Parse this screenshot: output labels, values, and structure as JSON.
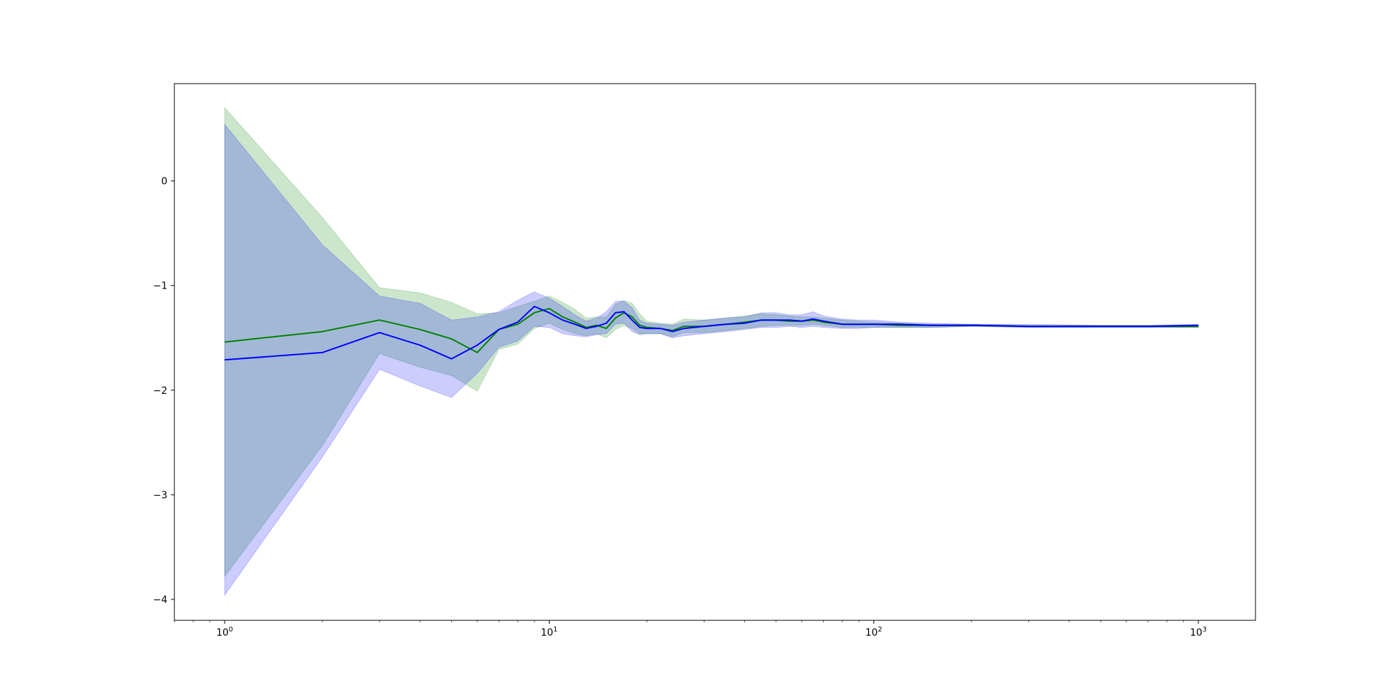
{
  "chart_data": {
    "type": "line",
    "title": "",
    "xlabel": "",
    "ylabel": "",
    "xscale": "log",
    "xlim": [
      0.7,
      1500
    ],
    "ylim": [
      -4.2,
      0.93
    ],
    "grid": false,
    "legend": "none",
    "x_ticks": [
      {
        "value": 1,
        "base": "10",
        "exp": "0"
      },
      {
        "value": 10,
        "base": "10",
        "exp": "1"
      },
      {
        "value": 100,
        "base": "10",
        "exp": "2"
      },
      {
        "value": 1000,
        "base": "10",
        "exp": "3"
      }
    ],
    "y_ticks": [
      {
        "value": 0,
        "label": "0"
      },
      {
        "value": -1,
        "label": "−1"
      },
      {
        "value": -2,
        "label": "−2"
      },
      {
        "value": -3,
        "label": "−3"
      },
      {
        "value": -4,
        "label": "−4"
      }
    ],
    "series": [
      {
        "color": "#008000",
        "band_color": "#008000",
        "band_opacity": 0.2,
        "x": [
          1,
          2,
          3,
          4,
          5,
          6,
          7,
          8,
          9,
          10,
          11,
          12,
          13,
          14,
          15,
          16,
          17,
          18,
          19,
          20,
          22,
          24,
          26,
          30,
          35,
          40,
          45,
          50,
          55,
          60,
          65,
          70,
          80,
          90,
          100,
          120,
          150,
          200,
          300,
          500,
          700,
          1000
        ],
        "y": [
          -1.54,
          -1.44,
          -1.33,
          -1.42,
          -1.51,
          -1.64,
          -1.42,
          -1.37,
          -1.26,
          -1.22,
          -1.3,
          -1.35,
          -1.4,
          -1.38,
          -1.41,
          -1.31,
          -1.26,
          -1.3,
          -1.38,
          -1.4,
          -1.41,
          -1.43,
          -1.39,
          -1.39,
          -1.37,
          -1.35,
          -1.33,
          -1.33,
          -1.34,
          -1.34,
          -1.33,
          -1.35,
          -1.37,
          -1.37,
          -1.37,
          -1.38,
          -1.38,
          -1.38,
          -1.39,
          -1.39,
          -1.39,
          -1.39
        ],
        "upper": [
          0.7,
          -0.35,
          -1.02,
          -1.07,
          -1.16,
          -1.27,
          -1.26,
          -1.2,
          -1.15,
          -1.1,
          -1.16,
          -1.23,
          -1.31,
          -1.3,
          -1.3,
          -1.18,
          -1.14,
          -1.17,
          -1.27,
          -1.34,
          -1.36,
          -1.37,
          -1.32,
          -1.33,
          -1.31,
          -1.29,
          -1.27,
          -1.28,
          -1.29,
          -1.3,
          -1.3,
          -1.31,
          -1.33,
          -1.34,
          -1.35,
          -1.36,
          -1.37,
          -1.37,
          -1.38,
          -1.38,
          -1.38,
          -1.38
        ],
        "lower": [
          -3.78,
          -2.53,
          -1.65,
          -1.78,
          -1.86,
          -2.01,
          -1.61,
          -1.56,
          -1.41,
          -1.36,
          -1.42,
          -1.46,
          -1.48,
          -1.46,
          -1.5,
          -1.42,
          -1.38,
          -1.41,
          -1.46,
          -1.46,
          -1.46,
          -1.49,
          -1.45,
          -1.45,
          -1.43,
          -1.41,
          -1.39,
          -1.38,
          -1.38,
          -1.38,
          -1.37,
          -1.38,
          -1.4,
          -1.4,
          -1.4,
          -1.4,
          -1.4,
          -1.39,
          -1.4,
          -1.4,
          -1.4,
          -1.4
        ]
      },
      {
        "color": "#0000ff",
        "band_color": "#0000ff",
        "band_opacity": 0.2,
        "x": [
          1,
          2,
          3,
          4,
          5,
          6,
          7,
          8,
          9,
          10,
          11,
          12,
          13,
          14,
          15,
          16,
          17,
          18,
          19,
          20,
          22,
          24,
          26,
          30,
          35,
          40,
          45,
          50,
          55,
          60,
          65,
          70,
          80,
          90,
          100,
          120,
          150,
          200,
          300,
          500,
          700,
          1000
        ],
        "y": [
          -1.71,
          -1.64,
          -1.45,
          -1.57,
          -1.7,
          -1.57,
          -1.42,
          -1.35,
          -1.2,
          -1.26,
          -1.33,
          -1.37,
          -1.41,
          -1.39,
          -1.36,
          -1.26,
          -1.25,
          -1.33,
          -1.4,
          -1.41,
          -1.41,
          -1.44,
          -1.41,
          -1.39,
          -1.37,
          -1.36,
          -1.33,
          -1.33,
          -1.33,
          -1.34,
          -1.32,
          -1.34,
          -1.37,
          -1.37,
          -1.37,
          -1.37,
          -1.38,
          -1.38,
          -1.39,
          -1.39,
          -1.39,
          -1.38
        ],
        "upper": [
          0.54,
          -0.61,
          -1.1,
          -1.17,
          -1.33,
          -1.3,
          -1.25,
          -1.14,
          -1.06,
          -1.12,
          -1.2,
          -1.28,
          -1.34,
          -1.31,
          -1.25,
          -1.15,
          -1.15,
          -1.21,
          -1.33,
          -1.36,
          -1.37,
          -1.38,
          -1.35,
          -1.33,
          -1.31,
          -1.3,
          -1.26,
          -1.26,
          -1.28,
          -1.28,
          -1.25,
          -1.29,
          -1.32,
          -1.33,
          -1.33,
          -1.35,
          -1.36,
          -1.37,
          -1.37,
          -1.38,
          -1.38,
          -1.37
        ],
        "lower": [
          -3.96,
          -2.64,
          -1.8,
          -1.96,
          -2.07,
          -1.84,
          -1.59,
          -1.53,
          -1.39,
          -1.4,
          -1.46,
          -1.48,
          -1.49,
          -1.47,
          -1.46,
          -1.37,
          -1.36,
          -1.44,
          -1.47,
          -1.46,
          -1.46,
          -1.5,
          -1.48,
          -1.46,
          -1.44,
          -1.42,
          -1.4,
          -1.4,
          -1.39,
          -1.4,
          -1.39,
          -1.4,
          -1.41,
          -1.41,
          -1.4,
          -1.4,
          -1.4,
          -1.39,
          -1.4,
          -1.4,
          -1.4,
          -1.4
        ]
      }
    ]
  }
}
